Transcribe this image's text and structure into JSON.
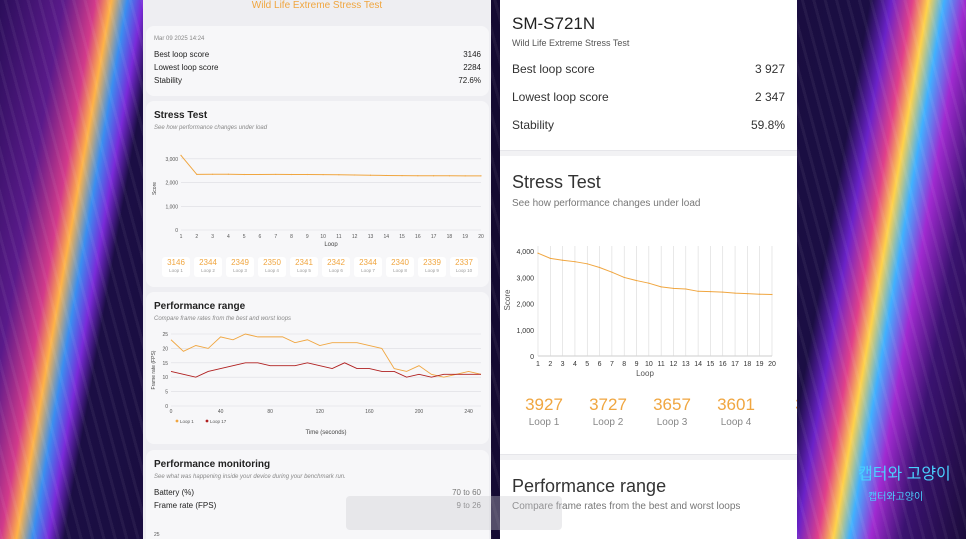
{
  "left": {
    "header": "Wild Life Extreme Stress Test",
    "summary": {
      "date": "Mar 09 2025 14:24",
      "rows": [
        {
          "label": "Best loop score",
          "value": "3146"
        },
        {
          "label": "Lowest loop score",
          "value": "2284"
        },
        {
          "label": "Stability",
          "value": "72.6%"
        }
      ]
    },
    "stress": {
      "title": "Stress Test",
      "subtitle": "See how performance changes under load",
      "ylabel": "Score",
      "xlabel": "Loop",
      "yticks": [
        "3,000",
        "2,000",
        "1,000",
        "0"
      ],
      "xticks": [
        "1",
        "2",
        "3",
        "4",
        "5",
        "6",
        "7",
        "8",
        "9",
        "10",
        "11",
        "12",
        "13",
        "14",
        "15",
        "16",
        "17",
        "18",
        "19",
        "20"
      ],
      "pills": [
        {
          "value": "3146",
          "label": "Loop 1"
        },
        {
          "value": "2344",
          "label": "Loop 2"
        },
        {
          "value": "2349",
          "label": "Loop 3"
        },
        {
          "value": "2350",
          "label": "Loop 4"
        },
        {
          "value": "2341",
          "label": "Loop 5"
        },
        {
          "value": "2342",
          "label": "Loop 6"
        },
        {
          "value": "2344",
          "label": "Loop 7"
        },
        {
          "value": "2340",
          "label": "Loop 8"
        },
        {
          "value": "2339",
          "label": "Loop 9"
        },
        {
          "value": "2337",
          "label": "Loop 10"
        }
      ]
    },
    "range": {
      "title": "Performance range",
      "subtitle": "Compare frame rates from the best and worst loops",
      "ylabel": "Frame rate (FPS)",
      "xlabel": "Time (seconds)",
      "yticks": [
        "25",
        "20",
        "15",
        "10",
        "5",
        "0"
      ],
      "xticks": [
        "0",
        "40",
        "80",
        "120",
        "160",
        "200",
        "240"
      ],
      "legend": [
        "Loop 1",
        "Loop 17"
      ]
    },
    "monitoring": {
      "title": "Performance monitoring",
      "subtitle": "See what was happening inside your device during your benchmark run.",
      "rows": [
        {
          "label": "Battery (%)",
          "value": "70 to 60"
        },
        {
          "label": "Frame rate (FPS)",
          "value": "9 to 26"
        }
      ],
      "next_tick": "25"
    }
  },
  "right": {
    "device": "SM-S721N",
    "test": "Wild Life Extreme Stress Test",
    "rows": [
      {
        "label": "Best loop score",
        "value": "3 927"
      },
      {
        "label": "Lowest loop score",
        "value": "2 347"
      },
      {
        "label": "Stability",
        "value": "59.8%"
      }
    ],
    "stress": {
      "title": "Stress Test",
      "subtitle": "See how performance changes under load",
      "ylabel": "Score",
      "xlabel": "Loop",
      "yticks": [
        "4,000",
        "3,000",
        "2,000",
        "1,000",
        "0"
      ],
      "xticks": [
        "1",
        "2",
        "3",
        "4",
        "5",
        "6",
        "7",
        "8",
        "9",
        "10",
        "11",
        "12",
        "13",
        "14",
        "15",
        "16",
        "17",
        "18",
        "19",
        "20"
      ],
      "loops": [
        {
          "value": "3927",
          "label": "Loop 1"
        },
        {
          "value": "3727",
          "label": "Loop 2"
        },
        {
          "value": "3657",
          "label": "Loop 3"
        },
        {
          "value": "3601",
          "label": "Loop 4"
        },
        {
          "value": "3",
          "label": ""
        }
      ]
    },
    "range": {
      "title": "Performance range",
      "subtitle": "Compare frame rates from the best and worst loops"
    }
  },
  "watermark": {
    "line1": "캡터와 고양이",
    "line2": "캡터와고양이"
  },
  "chart_data": [
    {
      "type": "line",
      "x": [
        1,
        2,
        3,
        4,
        5,
        6,
        7,
        8,
        9,
        10,
        11,
        12,
        13,
        14,
        15,
        16,
        17,
        18,
        19,
        20
      ],
      "series": [
        {
          "values": [
            3146,
            2344,
            2349,
            2350,
            2341,
            2342,
            2344,
            2340,
            2339,
            2337,
            2330,
            2320,
            2310,
            2300,
            2295,
            2290,
            2288,
            2286,
            2285,
            2284
          ]
        }
      ],
      "xlabel": "Loop",
      "ylabel": "Score",
      "ylim": [
        0,
        3500
      ]
    },
    {
      "type": "line",
      "x": [
        1,
        2,
        3,
        4,
        5,
        6,
        7,
        8,
        9,
        10,
        11,
        12,
        13,
        14,
        15,
        16,
        17,
        18,
        19,
        20
      ],
      "series": [
        {
          "values": [
            3927,
            3727,
            3657,
            3601,
            3520,
            3380,
            3200,
            3000,
            2880,
            2780,
            2640,
            2580,
            2560,
            2470,
            2460,
            2440,
            2400,
            2380,
            2360,
            2347
          ]
        }
      ],
      "xlabel": "Loop",
      "ylabel": "Score",
      "ylim": [
        0,
        4200
      ]
    },
    {
      "type": "line",
      "x": [
        0,
        10,
        20,
        30,
        40,
        50,
        60,
        70,
        80,
        90,
        100,
        110,
        120,
        130,
        140,
        150,
        160,
        170,
        180,
        190,
        200,
        210,
        220,
        230,
        240,
        250
      ],
      "series": [
        {
          "name": "Loop 1",
          "values": [
            23,
            19,
            21,
            20,
            24,
            23,
            25,
            24,
            24,
            24,
            22,
            23,
            21,
            22,
            22,
            22,
            21,
            20,
            13,
            12,
            14,
            11,
            10,
            11,
            12,
            11
          ]
        },
        {
          "name": "Loop 17",
          "values": [
            12,
            11,
            10,
            12,
            13,
            14,
            15,
            15,
            14,
            14,
            14,
            15,
            14,
            13,
            15,
            13,
            13,
            12,
            12,
            10,
            11,
            10,
            11,
            11,
            11,
            11
          ]
        }
      ],
      "xlabel": "Time (seconds)",
      "ylabel": "Frame rate (FPS)",
      "ylim": [
        0,
        25
      ]
    }
  ]
}
